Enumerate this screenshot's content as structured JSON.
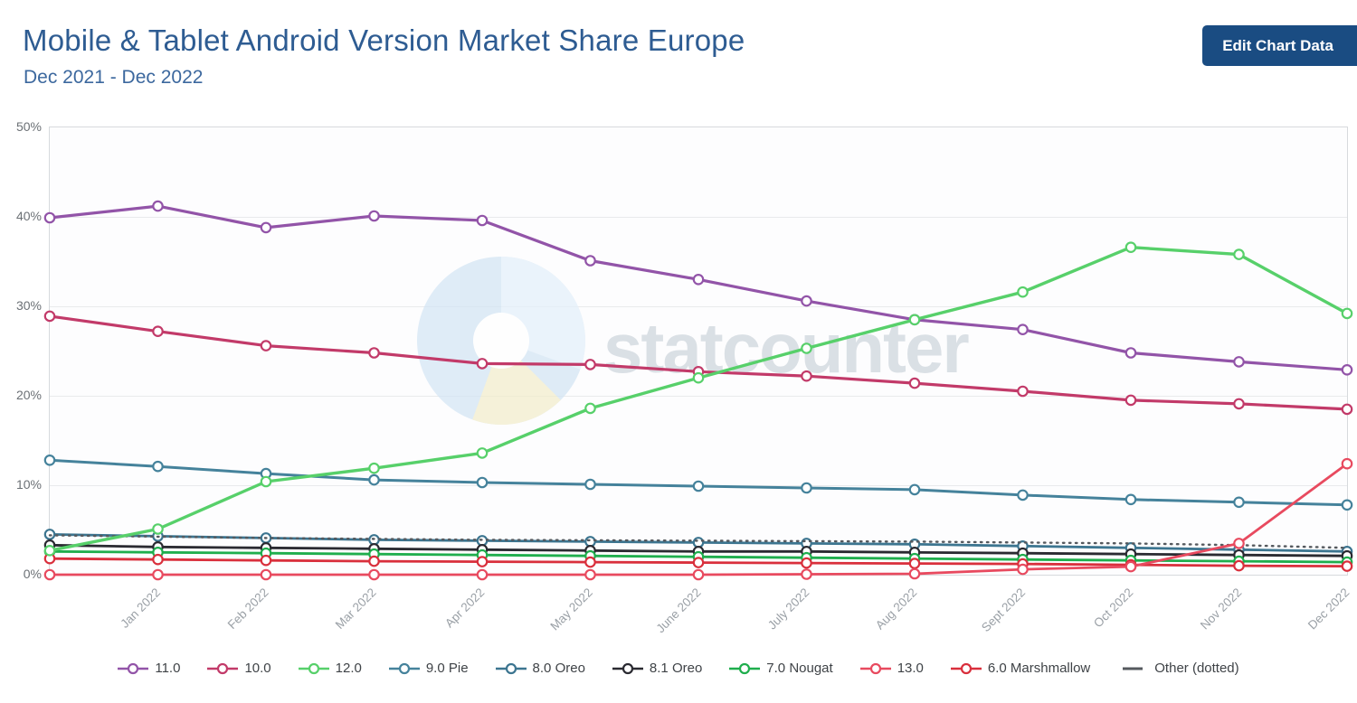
{
  "header": {
    "title": "Mobile & Tablet Android Version Market Share Europe",
    "subtitle": "Dec 2021 - Dec 2022",
    "edit_button_label": "Edit Chart Data"
  },
  "watermark": {
    "text": "statcounter"
  },
  "chart_data": {
    "type": "line",
    "title": "Mobile & Tablet Android Version Market Share Europe",
    "subtitle": "Dec 2021 - Dec 2022",
    "months": [
      "Dec 2021",
      "Jan 2022",
      "Feb 2022",
      "Mar 2022",
      "Apr 2022",
      "May 2022",
      "June 2022",
      "July 2022",
      "Aug 2022",
      "Sept 2022",
      "Oct 2022",
      "Nov 2022",
      "Dec 2022"
    ],
    "x_axis_labels_visible": [
      "Jan 2022",
      "Feb 2022",
      "Mar 2022",
      "Apr 2022",
      "May 2022",
      "June 2022",
      "July 2022",
      "Aug 2022",
      "Sept 2022",
      "Oct 2022",
      "Nov 2022",
      "Dec 2022"
    ],
    "y_ticks": [
      "0%",
      "10%",
      "20%",
      "30%",
      "40%",
      "50%"
    ],
    "ylim": [
      0,
      50
    ],
    "grid": true,
    "legend_position": "bottom",
    "series": [
      {
        "name": "11.0",
        "color": "#9254a8",
        "width": 3.2,
        "style": "solid",
        "markers": true,
        "values": [
          39.9,
          41.2,
          38.8,
          40.1,
          39.6,
          35.1,
          33.0,
          30.6,
          28.5,
          27.4,
          24.8,
          23.8,
          22.9
        ]
      },
      {
        "name": "10.0",
        "color": "#c23a69",
        "width": 3.2,
        "style": "solid",
        "markers": true,
        "values": [
          28.9,
          27.2,
          25.6,
          24.8,
          23.6,
          23.5,
          22.7,
          22.2,
          21.4,
          20.5,
          19.5,
          19.1,
          18.5
        ]
      },
      {
        "name": "12.0",
        "color": "#57d06a",
        "width": 3.4,
        "style": "solid",
        "markers": true,
        "values": [
          2.7,
          5.1,
          10.4,
          11.9,
          13.6,
          18.6,
          22.0,
          25.3,
          28.5,
          31.6,
          36.6,
          35.8,
          29.2
        ]
      },
      {
        "name": "9.0 Pie",
        "color": "#45829b",
        "width": 3.0,
        "style": "solid",
        "markers": true,
        "values": [
          12.8,
          12.1,
          11.3,
          10.6,
          10.3,
          10.1,
          9.9,
          9.7,
          9.5,
          8.9,
          8.4,
          8.1,
          7.8
        ]
      },
      {
        "name": "8.0 Oreo",
        "color": "#3c7590",
        "width": 2.8,
        "style": "solid",
        "markers": true,
        "values": [
          4.5,
          4.3,
          4.1,
          3.9,
          3.8,
          3.7,
          3.6,
          3.5,
          3.4,
          3.2,
          3.0,
          2.8,
          2.6
        ]
      },
      {
        "name": "8.1 Oreo",
        "color": "#2a2a31",
        "width": 2.8,
        "style": "solid",
        "markers": true,
        "values": [
          3.3,
          3.1,
          3.0,
          2.9,
          2.8,
          2.7,
          2.6,
          2.6,
          2.5,
          2.4,
          2.3,
          2.2,
          2.1
        ]
      },
      {
        "name": "7.0 Nougat",
        "color": "#1fae4d",
        "width": 2.8,
        "style": "solid",
        "markers": true,
        "values": [
          2.6,
          2.5,
          2.4,
          2.3,
          2.2,
          2.1,
          2.0,
          1.9,
          1.8,
          1.7,
          1.6,
          1.5,
          1.4
        ]
      },
      {
        "name": "13.0",
        "color": "#e84a5f",
        "width": 2.8,
        "style": "solid",
        "markers": true,
        "values": [
          0.0,
          0.0,
          0.0,
          0.0,
          0.0,
          0.0,
          0.0,
          0.05,
          0.1,
          0.6,
          0.9,
          3.5,
          12.4
        ]
      },
      {
        "name": "6.0 Marshmallow",
        "color": "#d92f3c",
        "width": 2.8,
        "style": "solid",
        "markers": true,
        "values": [
          1.8,
          1.7,
          1.6,
          1.5,
          1.45,
          1.4,
          1.35,
          1.3,
          1.25,
          1.2,
          1.1,
          1.0,
          0.95
        ]
      },
      {
        "name": "Other (dotted)",
        "color": "#55595e",
        "width": 2.4,
        "style": "dotted",
        "markers": false,
        "values": [
          4.4,
          4.25,
          4.1,
          4.0,
          3.9,
          3.85,
          3.8,
          3.75,
          3.7,
          3.6,
          3.5,
          3.3,
          3.0
        ]
      }
    ],
    "z_order": [
      "9.0 Pie",
      "8.0 Oreo",
      "8.1 Oreo",
      "7.0 Nougat",
      "6.0 Marshmallow",
      "Other (dotted)",
      "10.0",
      "11.0",
      "12.0",
      "13.0"
    ]
  }
}
